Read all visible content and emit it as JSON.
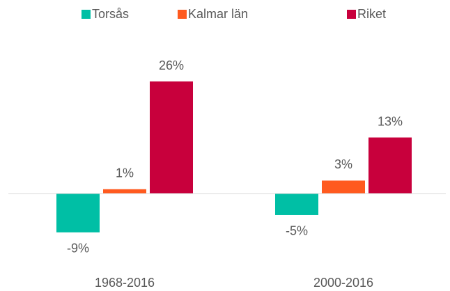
{
  "chart_data": {
    "type": "bar",
    "categories": [
      "1968-2016",
      "2000-2016"
    ],
    "series": [
      {
        "name": "Torsås",
        "color": "#00bfa5",
        "values": [
          -9,
          -5
        ],
        "value_labels": [
          "-9%",
          "-5%"
        ]
      },
      {
        "name": "Kalmar län",
        "color": "#ff5a1f",
        "values": [
          1,
          3
        ],
        "value_labels": [
          "1%",
          "3%"
        ]
      },
      {
        "name": "Riket",
        "color": "#c8003c",
        "values": [
          26,
          13
        ],
        "value_labels": [
          "26%",
          "13%"
        ]
      }
    ],
    "legend": "top"
  }
}
